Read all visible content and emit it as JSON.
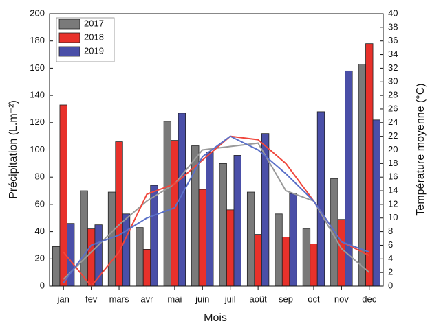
{
  "chart_data": {
    "type": "bar",
    "x_label": "Mois",
    "y_label": "Précipitation (L.m⁻²)",
    "y2_label": "Température moyenne (°C)",
    "categories": [
      "jan",
      "fev",
      "mars",
      "avr",
      "mai",
      "juin",
      "juil",
      "août",
      "sep",
      "oct",
      "nov",
      "dec"
    ],
    "series": [
      {
        "name": "2017",
        "color": "#7a7a7a",
        "values": [
          29,
          70,
          69,
          43,
          121,
          103,
          90,
          69,
          53,
          42,
          79,
          163
        ]
      },
      {
        "name": "2018",
        "color": "#e8312b",
        "values": [
          133,
          42,
          106,
          27,
          107,
          71,
          56,
          38,
          36,
          31,
          49,
          178
        ]
      },
      {
        "name": "2019",
        "color": "#4a4fa8",
        "values": [
          46,
          45,
          53,
          74,
          127,
          98,
          96,
          112,
          68,
          128,
          158,
          122
        ]
      }
    ],
    "temperature_series": [
      {
        "color": "#9a9a9a",
        "axis": "y2",
        "values": [
          1,
          5,
          9,
          12.5,
          15,
          20,
          20.5,
          21,
          14,
          12.5,
          5.5,
          2
        ]
      },
      {
        "color": "#f0463c",
        "axis": "y2",
        "values": [
          5,
          0,
          5,
          13.5,
          15,
          18.5,
          22,
          21.5,
          18,
          12.5,
          6.5,
          4.5
        ]
      },
      {
        "color": "#5a70c8",
        "axis": "y2",
        "values": [
          0.5,
          6,
          7.5,
          10,
          11.5,
          19,
          22,
          20,
          16.5,
          12.5,
          6.5,
          5
        ]
      }
    ],
    "ylim": [
      0,
      200
    ],
    "yticks": [
      0,
      20,
      40,
      60,
      80,
      100,
      120,
      140,
      160,
      180,
      200
    ],
    "y2lim": [
      0,
      40
    ],
    "y2ticks": [
      0,
      2,
      4,
      6,
      8,
      10,
      12,
      14,
      16,
      18,
      20,
      22,
      24,
      26,
      28,
      30,
      32,
      34,
      36,
      38,
      40
    ],
    "legend": "upper-left"
  }
}
